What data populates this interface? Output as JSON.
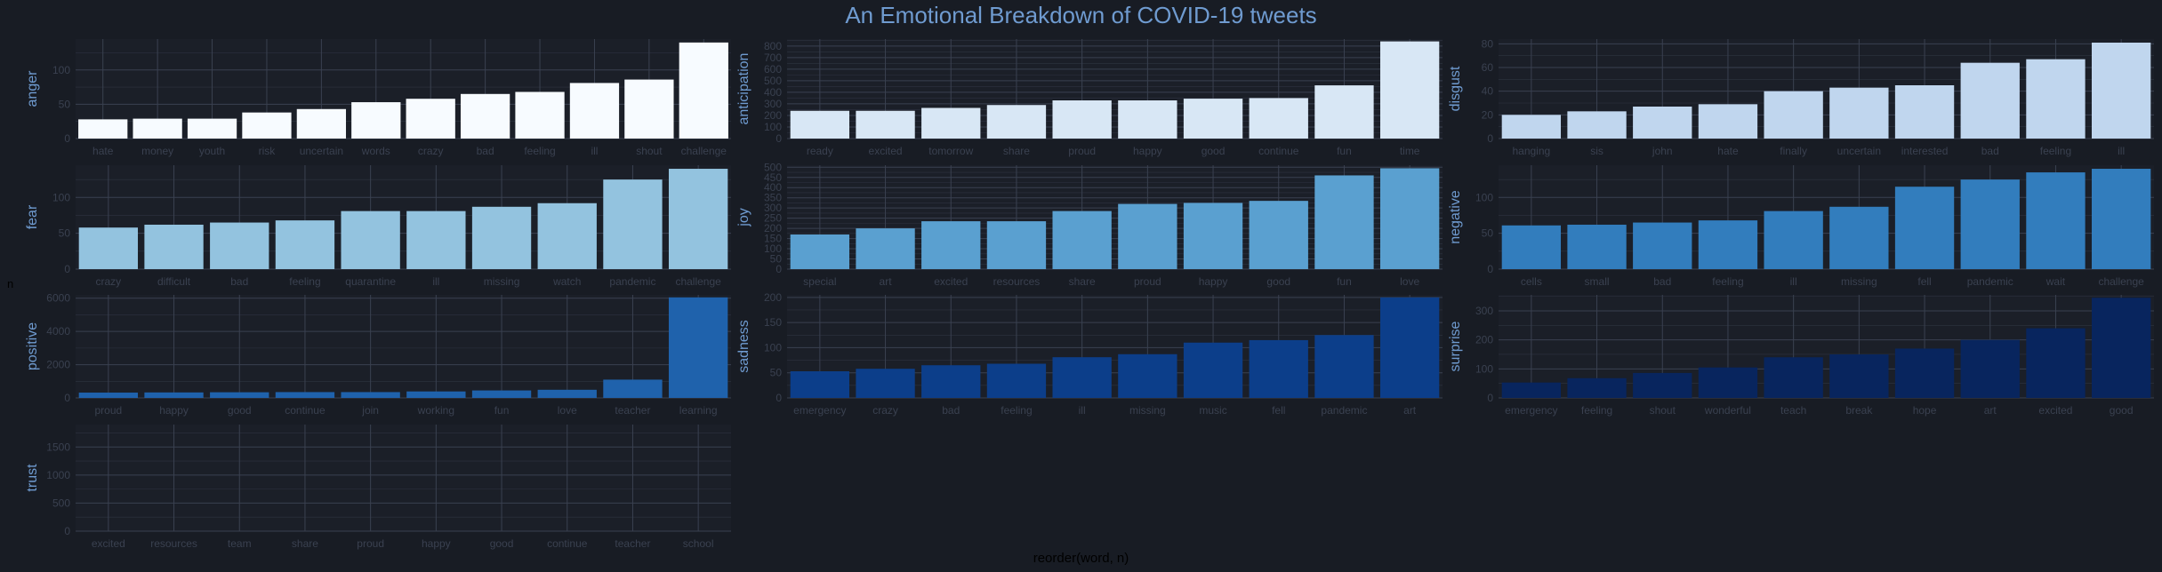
{
  "title": "An Emotional Breakdown of COVID-19 tweets",
  "xlabel": "reorder(word, n)",
  "ylabel": "n",
  "colors": {
    "background": "#181c24",
    "panel": "#1b1f28",
    "grid": "#3a4150",
    "title": "#6f9bd0"
  },
  "chart_data": {
    "type": "bar",
    "title": "An Emotional Breakdown of COVID-19 tweets",
    "xlabel": "reorder(word, n)",
    "ylabel": "n",
    "grid": true,
    "facets": [
      {
        "name": "anger",
        "color": "#f7fbff",
        "ylim": [
          0,
          145
        ],
        "yticks": [
          0,
          50,
          100
        ],
        "categories": [
          "hate",
          "money",
          "youth",
          "risk",
          "uncertain",
          "words",
          "crazy",
          "bad",
          "feeling",
          "ill",
          "shout",
          "challenge"
        ],
        "values": [
          28,
          29,
          29,
          38,
          43,
          53,
          58,
          65,
          68,
          81,
          86,
          140
        ]
      },
      {
        "name": "anticipation",
        "color": "#d8e7f5",
        "ylim": [
          0,
          860
        ],
        "yticks": [
          0,
          100,
          200,
          300,
          400,
          500,
          600,
          700,
          800
        ],
        "categories": [
          "ready",
          "excited",
          "tomorrow",
          "share",
          "proud",
          "happy",
          "good",
          "continue",
          "fun",
          "time"
        ],
        "values": [
          240,
          240,
          265,
          290,
          330,
          330,
          345,
          350,
          460,
          840
        ]
      },
      {
        "name": "disgust",
        "color": "#c0d6ee",
        "ylim": [
          0,
          84
        ],
        "yticks": [
          0,
          20,
          40,
          60,
          80
        ],
        "categories": [
          "hanging",
          "sis",
          "john",
          "hate",
          "finally",
          "uncertain",
          "interested",
          "bad",
          "feeling",
          "ill"
        ],
        "values": [
          20,
          23,
          27,
          29,
          40,
          43,
          45,
          64,
          67,
          81
        ]
      },
      {
        "name": "fear",
        "color": "#93c3df",
        "ylim": [
          0,
          145
        ],
        "yticks": [
          0,
          50,
          100
        ],
        "categories": [
          "crazy",
          "difficult",
          "bad",
          "feeling",
          "quarantine",
          "ill",
          "missing",
          "watch",
          "pandemic",
          "challenge"
        ],
        "values": [
          58,
          62,
          65,
          68,
          81,
          81,
          87,
          92,
          125,
          140
        ]
      },
      {
        "name": "joy",
        "color": "#5aa0d0",
        "ylim": [
          0,
          510
        ],
        "yticks": [
          0,
          50,
          100,
          150,
          200,
          250,
          300,
          350,
          400,
          450,
          500
        ],
        "categories": [
          "special",
          "art",
          "excited",
          "resources",
          "share",
          "proud",
          "happy",
          "good",
          "fun",
          "love"
        ],
        "values": [
          170,
          200,
          235,
          235,
          285,
          320,
          325,
          335,
          460,
          495
        ]
      },
      {
        "name": "negative",
        "color": "#327dbd",
        "ylim": [
          0,
          145
        ],
        "yticks": [
          0,
          50,
          100
        ],
        "categories": [
          "cells",
          "small",
          "bad",
          "feeling",
          "ill",
          "missing",
          "fell",
          "pandemic",
          "wait",
          "challenge"
        ],
        "values": [
          61,
          62,
          65,
          68,
          81,
          87,
          115,
          125,
          135,
          140
        ]
      },
      {
        "name": "positive",
        "color": "#1f62ac",
        "ylim": [
          0,
          6200
        ],
        "yticks": [
          0,
          2000,
          4000,
          6000
        ],
        "categories": [
          "proud",
          "happy",
          "good",
          "continue",
          "join",
          "working",
          "fun",
          "love",
          "teacher",
          "learning"
        ],
        "values": [
          320,
          330,
          340,
          350,
          350,
          390,
          450,
          490,
          1100,
          6050
        ]
      },
      {
        "name": "sadness",
        "color": "#0c3e8a",
        "ylim": [
          0,
          205
        ],
        "yticks": [
          0,
          50,
          100,
          150,
          200
        ],
        "categories": [
          "emergency",
          "crazy",
          "bad",
          "feeling",
          "ill",
          "missing",
          "music",
          "fell",
          "pandemic",
          "art"
        ],
        "values": [
          53,
          58,
          65,
          68,
          81,
          87,
          110,
          115,
          125,
          200
        ]
      },
      {
        "name": "surprise",
        "color": "#08255e",
        "ylim": [
          0,
          355
        ],
        "yticks": [
          0,
          100,
          200,
          300
        ],
        "categories": [
          "emergency",
          "feeling",
          "shout",
          "wonderful",
          "teach",
          "break",
          "hope",
          "art",
          "excited",
          "good"
        ],
        "values": [
          53,
          68,
          86,
          105,
          140,
          150,
          170,
          200,
          240,
          345
        ]
      },
      {
        "name": "trust",
        "color": "#08306b",
        "ylim": [
          0,
          1900
        ],
        "yticks": [
          0,
          500,
          1000,
          1500
        ],
        "categories": [
          "excited",
          "resources",
          "team",
          "share",
          "proud",
          "happy",
          "good",
          "continue",
          "teacher",
          "school"
        ],
        "values": [
          0,
          0,
          0,
          0,
          0,
          0,
          0,
          0,
          0,
          0
        ]
      }
    ]
  }
}
